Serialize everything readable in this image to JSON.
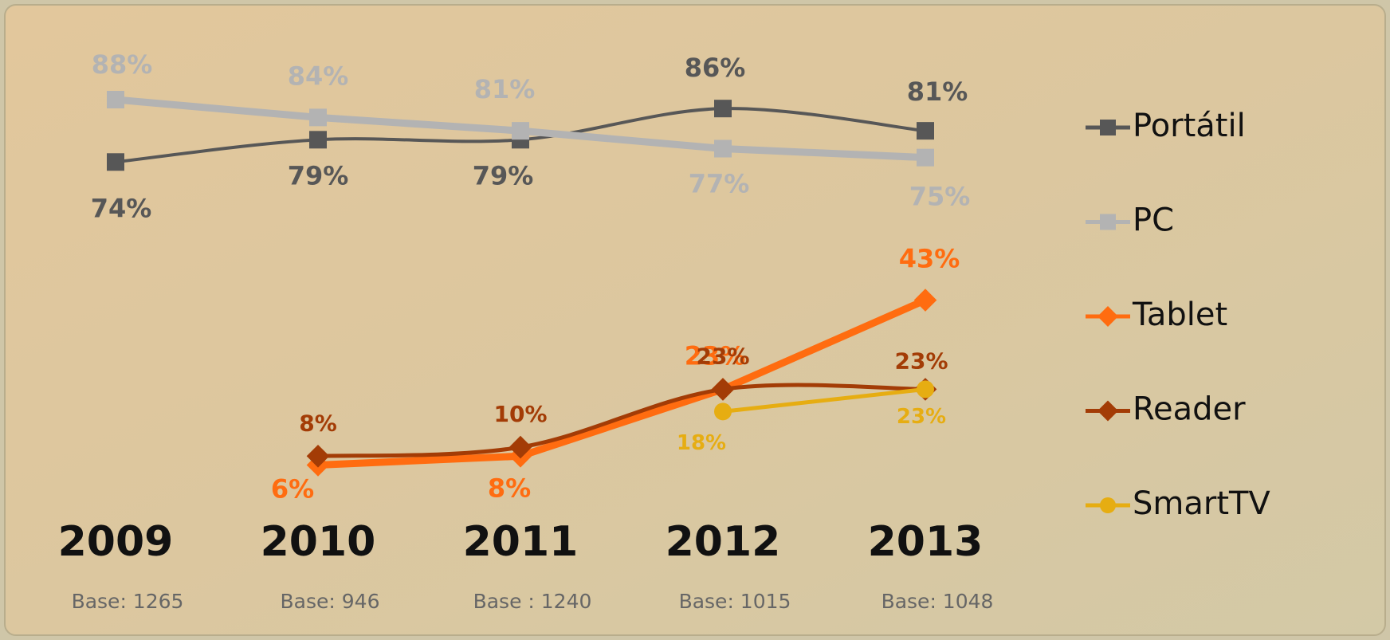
{
  "chart_data": {
    "type": "line",
    "categories": [
      "2009",
      "2010",
      "2011",
      "2012",
      "2013"
    ],
    "bases": [
      "Base: 1265",
      "Base: 946",
      "Base : 1240",
      "Base: 1015",
      "Base: 1048"
    ],
    "series": [
      {
        "name": "Portátil",
        "color": "#575757",
        "marker": "square",
        "smooth": true,
        "values": [
          74,
          79,
          79,
          86,
          81
        ],
        "value_labels": [
          "74%",
          "79%",
          "79%",
          "86%",
          "81%"
        ]
      },
      {
        "name": "PC",
        "color": "#b3b3b3",
        "marker": "square",
        "smooth": false,
        "values": [
          88,
          84,
          81,
          77,
          75
        ],
        "value_labels": [
          "88%",
          "84%",
          "81%",
          "77%",
          "75%"
        ]
      },
      {
        "name": "Tablet",
        "color": "#ff6c10",
        "marker": "diamond",
        "smooth": false,
        "values": [
          null,
          6,
          8,
          23,
          43
        ],
        "value_labels": [
          null,
          "6%",
          "8%",
          "23%",
          "43%"
        ]
      },
      {
        "name": "Reader",
        "color": "#a33c06",
        "marker": "diamond",
        "smooth": true,
        "values": [
          null,
          8,
          10,
          23,
          23
        ],
        "value_labels": [
          null,
          "8%",
          "10%",
          "23%",
          "23%"
        ]
      },
      {
        "name": "SmartTV",
        "color": "#e6ad12",
        "marker": "circle",
        "smooth": false,
        "values": [
          null,
          null,
          null,
          18,
          23
        ],
        "value_labels": [
          null,
          null,
          null,
          "18%",
          "23%"
        ]
      }
    ]
  }
}
